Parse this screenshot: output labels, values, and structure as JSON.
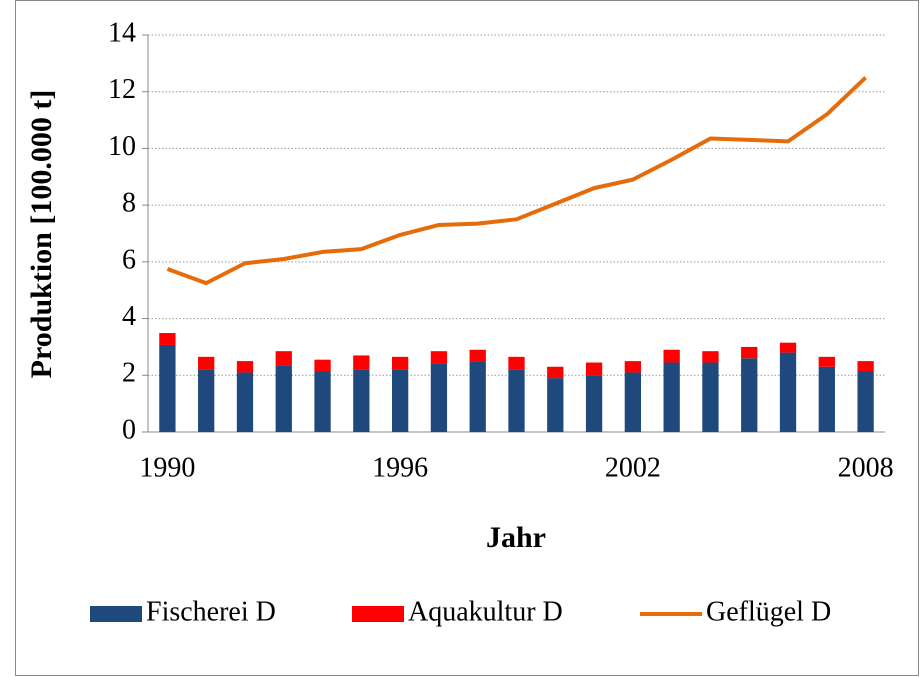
{
  "chart_data": {
    "type": "bar+line",
    "xlabel": "Jahr",
    "ylabel": "Produktion [100.000 t]",
    "categories": [
      "1990",
      null,
      null,
      null,
      null,
      null,
      "1996",
      null,
      null,
      null,
      null,
      null,
      "2002",
      null,
      null,
      null,
      null,
      null,
      "2008"
    ],
    "series": [
      {
        "name": "Fischerei D",
        "type": "bar",
        "color": "#1f497d",
        "values": [
          3.07,
          2.2,
          2.1,
          2.35,
          2.15,
          2.2,
          2.2,
          2.4,
          2.5,
          2.2,
          1.9,
          2.0,
          2.1,
          2.45,
          2.45,
          2.6,
          2.8,
          2.3,
          2.15
        ]
      },
      {
        "name": "Aquakultur D",
        "type": "bar",
        "color": "#ff0000",
        "values": [
          0.42,
          0.45,
          0.4,
          0.5,
          0.4,
          0.5,
          0.45,
          0.45,
          0.4,
          0.45,
          0.4,
          0.45,
          0.4,
          0.45,
          0.4,
          0.4,
          0.35,
          0.35,
          0.35
        ]
      },
      {
        "name": "Geflügel D",
        "type": "line",
        "color": "#e46c0a",
        "values": [
          5.75,
          5.25,
          5.95,
          6.1,
          6.35,
          6.45,
          6.95,
          7.3,
          7.35,
          7.5,
          8.05,
          8.6,
          8.9,
          9.6,
          10.35,
          10.3,
          10.25,
          11.2,
          12.5
        ]
      }
    ],
    "ylim": [
      0,
      14
    ],
    "yticks": [
      0,
      2,
      4,
      6,
      8,
      10,
      12,
      14
    ],
    "grid": true,
    "stacked": true,
    "legend": "bottom"
  }
}
